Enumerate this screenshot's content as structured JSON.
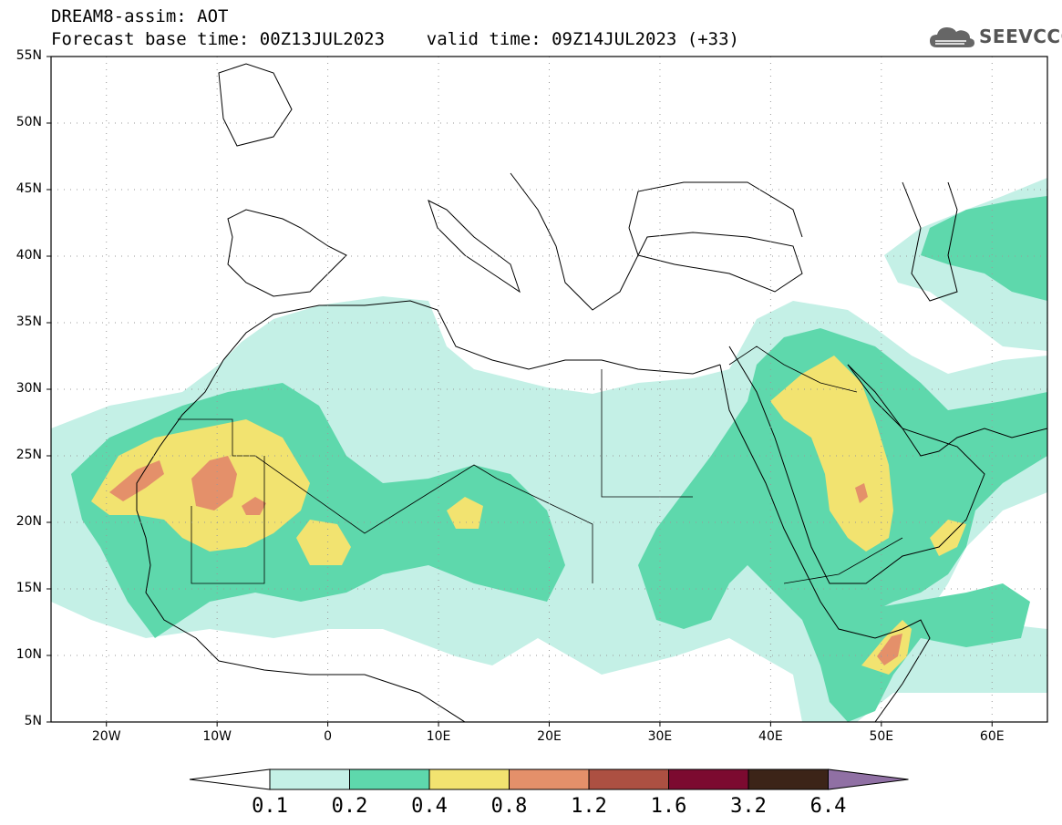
{
  "header": {
    "title_line1": "DREAM8-assim: AOT",
    "title_line2": "Forecast base time: 00Z13JUL2023    valid time: 09Z14JUL2023 (+33)"
  },
  "logo": {
    "text": "SEEVCCC",
    "icon": "cloud-icon"
  },
  "map": {
    "projection": "lat-lon",
    "lon_range": [
      -25,
      65
    ],
    "lat_range": [
      5,
      55
    ],
    "lat_ticks": [
      {
        "value": 55,
        "label": "55N"
      },
      {
        "value": 50,
        "label": "50N"
      },
      {
        "value": 45,
        "label": "45N"
      },
      {
        "value": 40,
        "label": "40N"
      },
      {
        "value": 35,
        "label": "35N"
      },
      {
        "value": 30,
        "label": "30N"
      },
      {
        "value": 25,
        "label": "25N"
      },
      {
        "value": 20,
        "label": "20N"
      },
      {
        "value": 15,
        "label": "15N"
      },
      {
        "value": 10,
        "label": "10N"
      },
      {
        "value": 5,
        "label": "5N"
      }
    ],
    "lon_ticks": [
      {
        "value": -20,
        "label": "20W"
      },
      {
        "value": -10,
        "label": "10W"
      },
      {
        "value": 0,
        "label": "0"
      },
      {
        "value": 10,
        "label": "10E"
      },
      {
        "value": 20,
        "label": "20E"
      },
      {
        "value": 30,
        "label": "30E"
      },
      {
        "value": 40,
        "label": "40E"
      },
      {
        "value": 50,
        "label": "50E"
      },
      {
        "value": 60,
        "label": "60E"
      }
    ],
    "grid": "dotted"
  },
  "colorbar": {
    "levels": [
      "0.1",
      "0.2",
      "0.4",
      "0.8",
      "1.2",
      "1.6",
      "3.2",
      "6.4"
    ],
    "colors": [
      "#c4f0e6",
      "#5ed8ac",
      "#f2e370",
      "#e4906a",
      "#ac5042",
      "#7c0a30",
      "#3c2418",
      "#9070a4"
    ],
    "left_extension_color": "#ffffff"
  },
  "field_colors": {
    "level1": "#c4f0e6",
    "level2": "#5ed8ac",
    "level3": "#f2e370",
    "level4": "#e4906a"
  }
}
